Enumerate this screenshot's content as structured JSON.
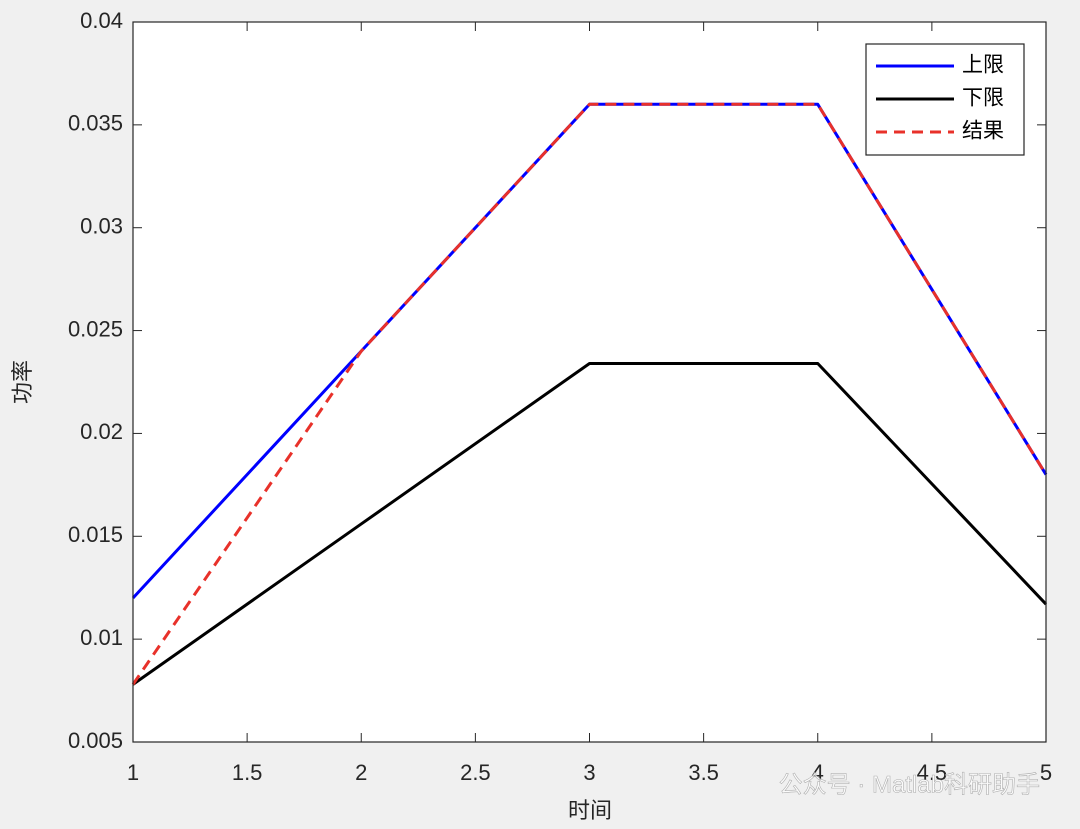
{
  "chart_data": {
    "type": "line",
    "xlabel": "时间",
    "ylabel": "功率",
    "x": [
      1,
      2,
      3,
      4,
      5
    ],
    "series": [
      {
        "name": "上限",
        "color": "#0000ff",
        "style": "solid",
        "values": [
          0.012,
          0.024,
          0.036,
          0.036,
          0.018
        ]
      },
      {
        "name": "下限",
        "color": "#000000",
        "style": "solid",
        "values": [
          0.0078,
          0.0156,
          0.0234,
          0.0234,
          0.0117
        ]
      },
      {
        "name": "结果",
        "color": "#e8312a",
        "style": "dashed",
        "values": [
          0.0078,
          0.024,
          0.036,
          0.036,
          0.018
        ]
      }
    ],
    "xlim": [
      1,
      5
    ],
    "xticks": [
      1,
      1.5,
      2,
      2.5,
      3,
      3.5,
      4,
      4.5,
      5
    ],
    "ylim": [
      0.005,
      0.04
    ],
    "yticks": [
      0.005,
      0.01,
      0.015,
      0.02,
      0.025,
      0.03,
      0.035,
      0.04
    ],
    "grid": false,
    "legend": "top-right",
    "watermark": "公众号 · Matlab科研助手"
  }
}
